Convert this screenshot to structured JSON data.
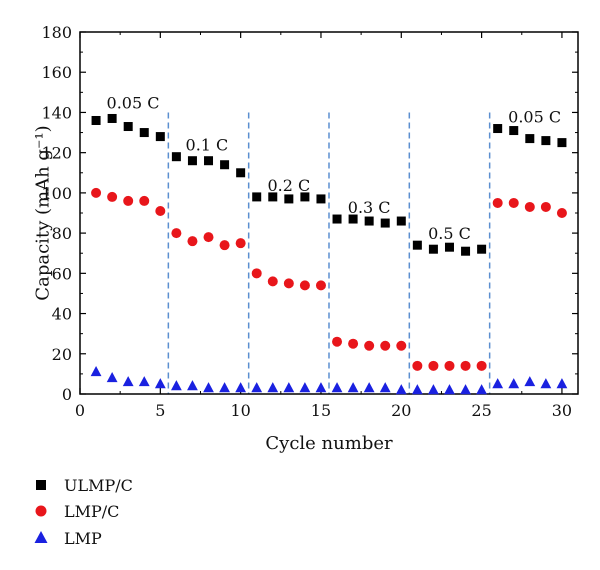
{
  "chart_data": {
    "type": "scatter",
    "xlabel": "Cycle number",
    "ylabel": "Capacity (mAh g⁻¹)",
    "xlim": [
      0,
      31
    ],
    "ylim": [
      0,
      180
    ],
    "xticks": [
      0,
      5,
      10,
      15,
      20,
      25,
      30
    ],
    "yticks": [
      0,
      20,
      40,
      60,
      80,
      100,
      120,
      140,
      160,
      180
    ],
    "grid": false,
    "legend_position": "below-left",
    "dividers": [
      5.5,
      10.5,
      15.5,
      20.5,
      25.5
    ],
    "divider_color": "#5b8fd0",
    "annotations": [
      {
        "text": "0.05 C",
        "x": 3.3,
        "y": 142
      },
      {
        "text": "0.1 C",
        "x": 7.9,
        "y": 121
      },
      {
        "text": "0.2 C",
        "x": 13.0,
        "y": 101
      },
      {
        "text": "0.3 C",
        "x": 18.0,
        "y": 90
      },
      {
        "text": "0.5 C",
        "x": 23.0,
        "y": 77
      },
      {
        "text": "0.05 C",
        "x": 28.3,
        "y": 135
      }
    ],
    "x": [
      1,
      2,
      3,
      4,
      5,
      6,
      7,
      8,
      9,
      10,
      11,
      12,
      13,
      14,
      15,
      16,
      17,
      18,
      19,
      20,
      21,
      22,
      23,
      24,
      25,
      26,
      27,
      28,
      29,
      30
    ],
    "series": [
      {
        "name": "ULMP/C",
        "marker": "square",
        "color": "#000000",
        "values": [
          136,
          137,
          133,
          130,
          128,
          118,
          116,
          116,
          114,
          110,
          98,
          98,
          97,
          98,
          97,
          87,
          87,
          86,
          85,
          86,
          74,
          72,
          73,
          71,
          72,
          132,
          131,
          127,
          126,
          125
        ]
      },
      {
        "name": "LMP/C",
        "marker": "circle",
        "color": "#e8161b",
        "values": [
          100,
          98,
          96,
          96,
          91,
          80,
          76,
          78,
          74,
          75,
          60,
          56,
          55,
          54,
          54,
          26,
          25,
          24,
          24,
          24,
          14,
          14,
          14,
          14,
          14,
          95,
          95,
          93,
          93,
          90
        ]
      },
      {
        "name": "LMP",
        "marker": "triangle",
        "color": "#1a21e0",
        "values": [
          11,
          8,
          6,
          6,
          5,
          4,
          4,
          3,
          3,
          3,
          3,
          3,
          3,
          3,
          3,
          3,
          3,
          3,
          3,
          2,
          2,
          2,
          2,
          2,
          2,
          5,
          5,
          6,
          5,
          5
        ]
      }
    ]
  }
}
